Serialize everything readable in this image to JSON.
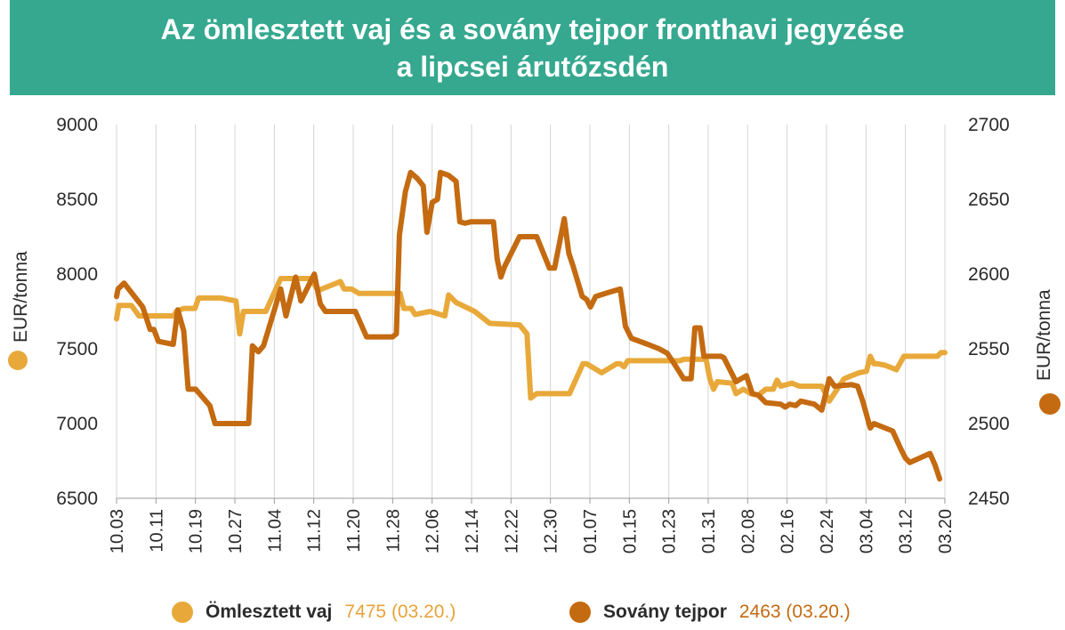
{
  "title": {
    "line1": "Az ömlesztett vaj és a sovány tejpor fronthavi jegyzése",
    "line2": "a lipcsei árutőzsdén"
  },
  "legend": {
    "items": [
      {
        "name": "Ömlesztett vaj",
        "value": "7475 (03.20.)",
        "color": "#e8a93a"
      },
      {
        "name": "Sovány tejpor",
        "value": "2463 (03.20.)",
        "color": "#c46a10"
      }
    ]
  },
  "chart_data": {
    "type": "line",
    "title": "Az ömlesztett vaj és a sovány tejpor fronthavi jegyzése a lipcsei árutőzsdén",
    "x_categories": [
      "10.03",
      "10.11",
      "10.19",
      "10.27",
      "11.04",
      "11.12",
      "11.20",
      "11.28",
      "12.06",
      "12.14",
      "12.22",
      "12.30",
      "01.07",
      "01.15",
      "01.23",
      "01.31",
      "02.08",
      "02.16",
      "02.24",
      "03.04",
      "03.12",
      "03.20"
    ],
    "ylabel_left": "EUR/tonna",
    "ylabel_right": "EUR/tonna",
    "ylim_left": [
      6500,
      9000
    ],
    "ylim_right": [
      2450,
      2700
    ],
    "yticks_left": [
      "6500",
      "7000",
      "7500",
      "8000",
      "8500",
      "9000"
    ],
    "yticks_right": [
      "2450",
      "2500",
      "2550",
      "2600",
      "2650",
      "2700"
    ],
    "grid": "vertical gridlines at x tick labels",
    "series": [
      {
        "name": "Ömlesztett vaj",
        "axis": "left",
        "color": "#e8a93a",
        "points": [
          [
            0,
            7700
          ],
          [
            0.3,
            7790
          ],
          [
            2,
            7790
          ],
          [
            3,
            7720
          ],
          [
            7.7,
            7720
          ],
          [
            8,
            7750
          ],
          [
            9,
            7770
          ],
          [
            10.5,
            7770
          ],
          [
            11,
            7840
          ],
          [
            14,
            7840
          ],
          [
            16,
            7820
          ],
          [
            16.5,
            7600
          ],
          [
            17,
            7750
          ],
          [
            20,
            7750
          ],
          [
            22,
            7970
          ],
          [
            26,
            7970
          ],
          [
            27,
            7890
          ],
          [
            30,
            7950
          ],
          [
            30.5,
            7900
          ],
          [
            31.5,
            7900
          ],
          [
            32.5,
            7870
          ],
          [
            38,
            7870
          ],
          [
            38.5,
            7770
          ],
          [
            39.5,
            7770
          ],
          [
            40,
            7730
          ],
          [
            42,
            7750
          ],
          [
            44,
            7720
          ],
          [
            44.5,
            7860
          ],
          [
            45.5,
            7810
          ],
          [
            48,
            7750
          ],
          [
            50,
            7670
          ],
          [
            54,
            7660
          ],
          [
            55,
            7600
          ],
          [
            55.5,
            7170
          ],
          [
            56.3,
            7200
          ],
          [
            60.7,
            7200
          ],
          [
            62.5,
            7400
          ],
          [
            63,
            7400
          ],
          [
            65,
            7340
          ],
          [
            67,
            7400
          ],
          [
            67.5,
            7400
          ],
          [
            68,
            7380
          ],
          [
            68.5,
            7420
          ],
          [
            75.5,
            7420
          ],
          [
            76,
            7430
          ],
          [
            79,
            7430
          ],
          [
            79.5,
            7300
          ],
          [
            80,
            7230
          ],
          [
            80.5,
            7280
          ],
          [
            82.5,
            7270
          ],
          [
            83,
            7200
          ],
          [
            84,
            7230
          ],
          [
            85,
            7200
          ],
          [
            86,
            7190
          ],
          [
            87,
            7230
          ],
          [
            88,
            7230
          ],
          [
            88.5,
            7290
          ],
          [
            89,
            7250
          ],
          [
            90.5,
            7270
          ],
          [
            91.5,
            7250
          ],
          [
            94.5,
            7250
          ],
          [
            95.5,
            7150
          ],
          [
            97.5,
            7300
          ],
          [
            98.5,
            7320
          ],
          [
            99.5,
            7340
          ],
          [
            100.5,
            7350
          ],
          [
            101,
            7450
          ],
          [
            101.5,
            7400
          ],
          [
            102,
            7400
          ],
          [
            103,
            7390
          ],
          [
            104.5,
            7360
          ],
          [
            105.5,
            7450
          ],
          [
            110,
            7450
          ],
          [
            110.5,
            7475
          ],
          [
            111,
            7475
          ]
        ]
      },
      {
        "name": "Sovány tejpor",
        "axis": "right",
        "color": "#c46a10",
        "points": [
          [
            0,
            2585
          ],
          [
            0.2,
            2590
          ],
          [
            1,
            2594
          ],
          [
            3.5,
            2578
          ],
          [
            4.5,
            2563
          ],
          [
            5,
            2563
          ],
          [
            5.6,
            2555
          ],
          [
            7.6,
            2553
          ],
          [
            8.2,
            2576
          ],
          [
            9,
            2562
          ],
          [
            9.6,
            2523
          ],
          [
            10.6,
            2523
          ],
          [
            12.5,
            2512
          ],
          [
            13.2,
            2500
          ],
          [
            17.7,
            2500
          ],
          [
            18.2,
            2552
          ],
          [
            19,
            2548
          ],
          [
            19.7,
            2552
          ],
          [
            22,
            2590
          ],
          [
            22.7,
            2572
          ],
          [
            24,
            2598
          ],
          [
            24.7,
            2582
          ],
          [
            26.5,
            2600
          ],
          [
            27.3,
            2580
          ],
          [
            28,
            2575
          ],
          [
            30.5,
            2575
          ],
          [
            31.5,
            2575
          ],
          [
            32,
            2575
          ],
          [
            33.5,
            2558
          ],
          [
            37,
            2558
          ],
          [
            37.5,
            2560
          ],
          [
            37.9,
            2626
          ],
          [
            38.7,
            2655
          ],
          [
            39.4,
            2668
          ],
          [
            40.3,
            2664
          ],
          [
            41.1,
            2659
          ],
          [
            41.6,
            2628
          ],
          [
            42.3,
            2648
          ],
          [
            43,
            2650
          ],
          [
            43.4,
            2668
          ],
          [
            44.5,
            2666
          ],
          [
            45.5,
            2662
          ],
          [
            46,
            2635
          ],
          [
            46.7,
            2634
          ],
          [
            47.5,
            2635
          ],
          [
            50.5,
            2635
          ],
          [
            51,
            2610
          ],
          [
            51.5,
            2598
          ],
          [
            52,
            2605
          ],
          [
            54,
            2625
          ],
          [
            56.3,
            2625
          ],
          [
            58,
            2604
          ],
          [
            58.7,
            2604
          ],
          [
            60,
            2637
          ],
          [
            60.6,
            2614
          ],
          [
            61.2,
            2605
          ],
          [
            62.4,
            2585
          ],
          [
            63,
            2583
          ],
          [
            63.5,
            2578
          ],
          [
            64.2,
            2585
          ],
          [
            65.5,
            2587
          ],
          [
            67.5,
            2590
          ],
          [
            68.2,
            2565
          ],
          [
            69,
            2557
          ],
          [
            71.2,
            2553
          ],
          [
            72.7,
            2550
          ],
          [
            73.8,
            2547
          ],
          [
            74.6,
            2541
          ],
          [
            76,
            2530
          ],
          [
            77,
            2530
          ],
          [
            77.5,
            2564
          ],
          [
            78.2,
            2564
          ],
          [
            78.7,
            2545
          ],
          [
            81,
            2545
          ],
          [
            81.4,
            2544
          ],
          [
            83,
            2528
          ],
          [
            84.4,
            2532
          ],
          [
            85.2,
            2520
          ],
          [
            86,
            2519
          ],
          [
            87,
            2514
          ],
          [
            89,
            2513
          ],
          [
            89.6,
            2511
          ],
          [
            90.2,
            2513
          ],
          [
            91,
            2512
          ],
          [
            91.7,
            2515
          ],
          [
            93.5,
            2513
          ],
          [
            94.5,
            2509
          ],
          [
            95.5,
            2530
          ],
          [
            96.2,
            2525
          ],
          [
            98.5,
            2526
          ],
          [
            99.3,
            2525
          ],
          [
            100,
            2515
          ],
          [
            101,
            2497
          ],
          [
            101.5,
            2500
          ],
          [
            104,
            2495
          ],
          [
            105,
            2484
          ],
          [
            105.7,
            2477
          ],
          [
            106.3,
            2474
          ],
          [
            109,
            2480
          ],
          [
            109.7,
            2472
          ],
          [
            110.3,
            2463
          ]
        ]
      }
    ]
  }
}
